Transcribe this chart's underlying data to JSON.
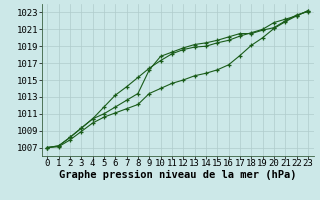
{
  "title": "Graphe pression niveau de la mer (hPa)",
  "background_color": "#cce8e8",
  "plot_bg_color": "#cce8e8",
  "grid_color": "#b0cccc",
  "line_color": "#1a5c1a",
  "marker_color": "#1a5c1a",
  "xlim": [
    -0.5,
    23.5
  ],
  "ylim": [
    1006.0,
    1024.0
  ],
  "xticks": [
    0,
    1,
    2,
    3,
    4,
    5,
    6,
    7,
    8,
    9,
    10,
    11,
    12,
    13,
    14,
    15,
    16,
    17,
    18,
    19,
    20,
    21,
    22,
    23
  ],
  "yticks": [
    1007,
    1009,
    1011,
    1013,
    1015,
    1017,
    1019,
    1021,
    1023
  ],
  "series_upper": [
    1007.0,
    1007.2,
    1008.2,
    1009.3,
    1010.4,
    1011.8,
    1013.2,
    1014.2,
    1015.3,
    1016.4,
    1017.3,
    1018.1,
    1018.6,
    1018.9,
    1019.0,
    1019.4,
    1019.7,
    1020.2,
    1020.6,
    1021.0,
    1021.8,
    1022.2,
    1022.6,
    1023.2
  ],
  "series_mid": [
    1007.0,
    1007.2,
    1008.2,
    1009.3,
    1010.4,
    1011.0,
    1011.8,
    1012.6,
    1013.4,
    1016.2,
    1017.8,
    1018.3,
    1018.8,
    1019.2,
    1019.4,
    1019.7,
    1020.1,
    1020.5,
    1020.5,
    1020.9,
    1021.2,
    1022.0,
    1022.7,
    1023.1
  ],
  "series_lower": [
    1007.0,
    1007.1,
    1007.9,
    1008.9,
    1009.9,
    1010.6,
    1011.1,
    1011.6,
    1012.1,
    1013.4,
    1014.0,
    1014.6,
    1015.0,
    1015.5,
    1015.8,
    1016.2,
    1016.8,
    1017.9,
    1019.1,
    1020.0,
    1021.1,
    1021.9,
    1022.6,
    1023.2
  ],
  "title_fontsize": 7.5,
  "tick_fontsize": 6.5
}
